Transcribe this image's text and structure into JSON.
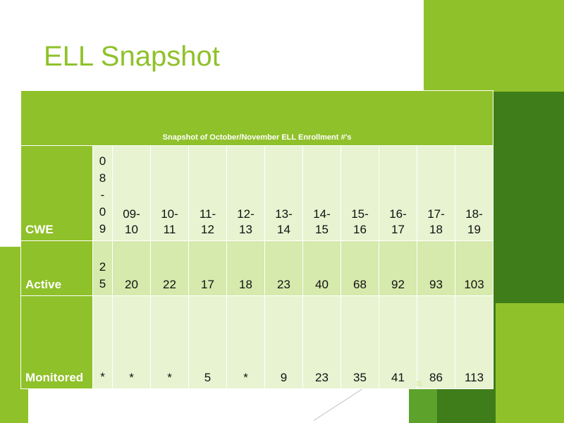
{
  "slide": {
    "title": "ELL Snapshot",
    "slide_number": "31"
  },
  "table": {
    "caption": "Snapshot of October/November ELL Enrollment #'s",
    "rows": [
      {
        "label": "CWE",
        "values": [
          "0\n8\n-\n0\n9",
          "09-\n10",
          "10-\n11",
          "11-\n12",
          "12-\n13",
          "13-\n14",
          "14-\n15",
          "15-\n16",
          "16-\n17",
          "17-\n18",
          "18-\n19"
        ]
      },
      {
        "label": "Active",
        "values": [
          "2\n5",
          "20",
          "22",
          "17",
          "18",
          "23",
          "40",
          "68",
          "92",
          "93",
          "103"
        ]
      },
      {
        "label": "Monitored",
        "values": [
          "*",
          "*",
          "*",
          "5",
          "*",
          "9",
          "23",
          "35",
          "41",
          "86",
          "113"
        ]
      }
    ]
  },
  "colors": {
    "accent": "#8fc12a",
    "accent_dark": "#3f7c1a",
    "cell_light": "#e8f3d1",
    "cell_mid": "#d5eaac"
  }
}
